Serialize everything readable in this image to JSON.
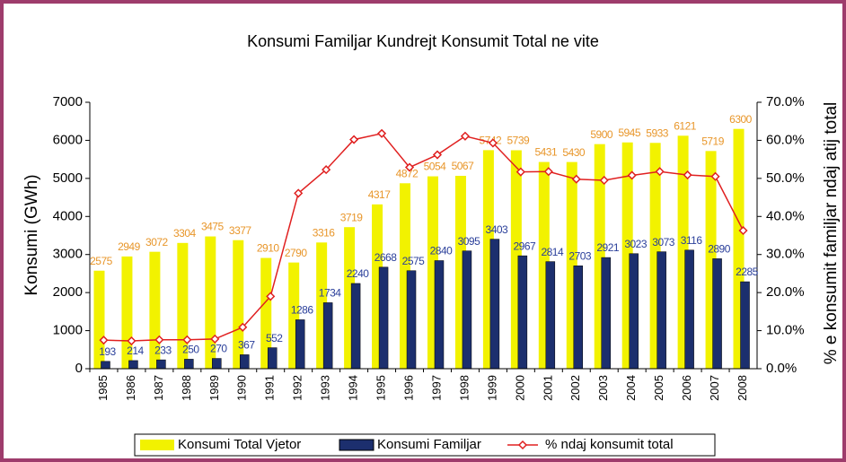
{
  "chart_data": {
    "type": "bar-line",
    "title": "Konsumi Familjar Kundrejt Konsumit Total ne vite",
    "y_label": "Konsumi (GWh)",
    "y2_label": "% e konsumit familjar ndaj atij total",
    "categories": [
      "1985",
      "1986",
      "1987",
      "1988",
      "1989",
      "1990",
      "1991",
      "1992",
      "1993",
      "1994",
      "1995",
      "1996",
      "1997",
      "1998",
      "1999",
      "2000",
      "2001",
      "2002",
      "2003",
      "2004",
      "2005",
      "2006",
      "2007",
      "2008"
    ],
    "series": [
      {
        "name": "Konsumi Total Vjetor",
        "type": "bar",
        "color": "#f2f200",
        "label_color": "#e8962a",
        "values": [
          2575,
          2949,
          3072,
          3304,
          3475,
          3377,
          2910,
          2790,
          3316,
          3719,
          4317,
          4872,
          5054,
          5067,
          5742,
          5739,
          5431,
          5430,
          5900,
          5945,
          5933,
          6121,
          5719,
          6300
        ]
      },
      {
        "name": "Konsumi Familjar",
        "type": "bar",
        "color": "#1c2f6e",
        "label_color": "#2a3f9a",
        "values": [
          193,
          214,
          233,
          250,
          270,
          367,
          552,
          1286,
          1734,
          2240,
          2668,
          2575,
          2840,
          3095,
          3403,
          2967,
          2814,
          2703,
          2921,
          3023,
          3073,
          3116,
          2890,
          2285
        ]
      },
      {
        "name": "% ndaj konsumit total",
        "type": "line",
        "axis": "y2",
        "color": "#e02020",
        "values": [
          7.5,
          7.3,
          7.6,
          7.6,
          7.8,
          10.9,
          19.0,
          46.1,
          52.3,
          60.2,
          61.8,
          52.9,
          56.2,
          61.1,
          59.3,
          51.7,
          51.8,
          49.8,
          49.5,
          50.8,
          51.8,
          50.9,
          50.5,
          36.3
        ]
      }
    ],
    "ylim": [
      0,
      7000
    ],
    "yticks": [
      0,
      1000,
      2000,
      3000,
      4000,
      5000,
      6000,
      7000
    ],
    "y2lim": [
      0,
      70
    ],
    "y2ticks": [
      {
        "value": 0,
        "label": "0.0%"
      },
      {
        "value": 10,
        "label": "10.0%"
      },
      {
        "value": 20,
        "label": "20.0%"
      },
      {
        "value": 30,
        "label": "30.0%"
      },
      {
        "value": 40,
        "label": "40.0%"
      },
      {
        "value": 50,
        "label": "50.0%"
      },
      {
        "value": 60,
        "label": "60.0%"
      },
      {
        "value": 70,
        "label": "70.0%"
      }
    ],
    "legend": "bottom"
  }
}
